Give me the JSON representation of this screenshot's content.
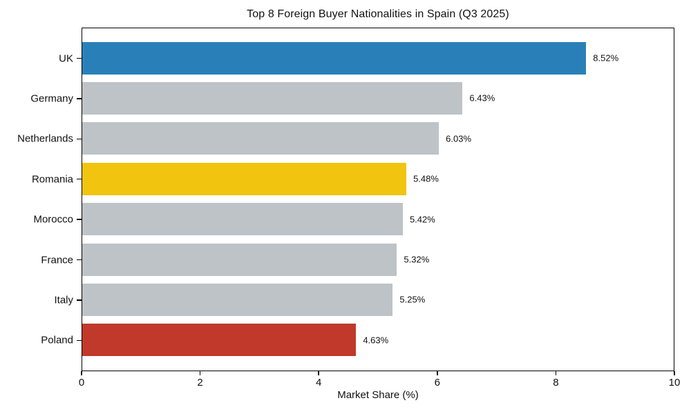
{
  "chart_data": {
    "type": "bar",
    "orientation": "horizontal",
    "title": "Top 8 Foreign Buyer Nationalities in Spain (Q3 2025)",
    "xlabel": "Market Share (%)",
    "ylabel": "",
    "categories": [
      "UK",
      "Germany",
      "Netherlands",
      "Romania",
      "Morocco",
      "France",
      "Italy",
      "Poland"
    ],
    "values": [
      8.52,
      6.43,
      6.03,
      5.48,
      5.42,
      5.32,
      5.25,
      4.63
    ],
    "value_labels": [
      "8.52%",
      "6.43%",
      "6.03%",
      "5.48%",
      "5.42%",
      "5.32%",
      "5.25%",
      "4.63%"
    ],
    "xlim": [
      0,
      10
    ],
    "xticks": [
      0,
      2,
      4,
      6,
      8,
      10
    ],
    "xtick_labels": [
      "0",
      "2",
      "4",
      "6",
      "8",
      "10"
    ],
    "grid": false,
    "legend": null,
    "bar_colors": [
      "#2980b9",
      "#bdc3c7",
      "#bdc3c7",
      "#f1c40f",
      "#bdc3c7",
      "#bdc3c7",
      "#bdc3c7",
      "#c0392b"
    ],
    "colors": {
      "highlight_blue": "#2980b9",
      "neutral_gray": "#bdc3c7",
      "highlight_yellow": "#f1c40f",
      "highlight_red": "#c0392b",
      "text": "#111111",
      "axis": "#000000",
      "background": "#ffffff"
    }
  }
}
